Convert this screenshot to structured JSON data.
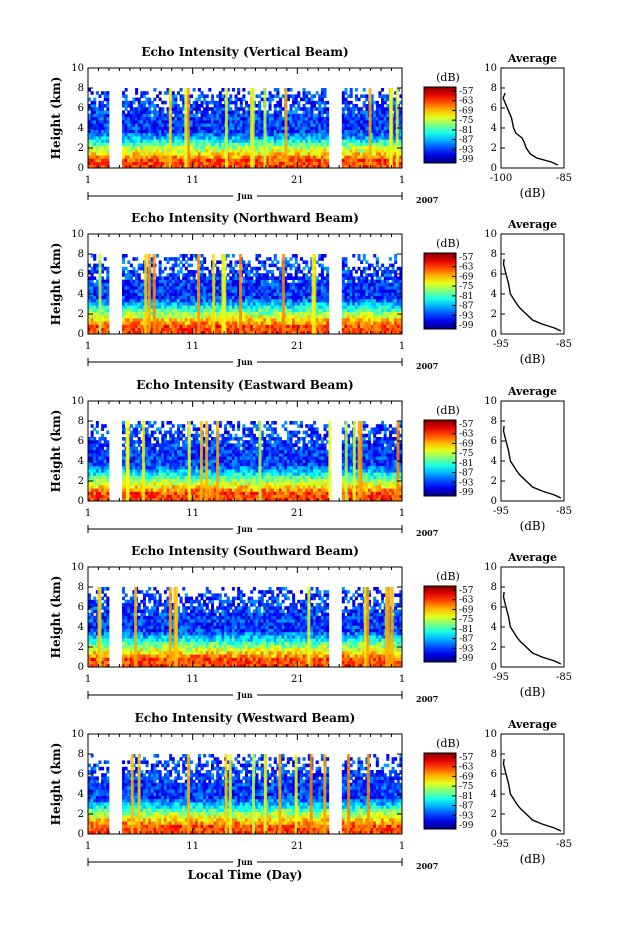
{
  "figure": {
    "x_ticks": [
      "1",
      "11",
      "21",
      "1"
    ],
    "month_label": "Jun",
    "year_label": "2007",
    "xlabel": "Local Time (Day)",
    "ylabel": "Height (km)",
    "y_ticks": [
      0,
      2,
      4,
      6,
      8,
      10
    ],
    "colorbar_unit": "(dB)",
    "colorbar_ticks": [
      "-57",
      "-63",
      "-69",
      "-75",
      "-81",
      "-87",
      "-93",
      "-99"
    ],
    "average_title": "Average",
    "average_xlabel": "(dB)"
  },
  "chart_data": [
    {
      "type": "heatmap",
      "title": "Echo Intensity (Vertical Beam)",
      "ylabel": "Height (km)",
      "ylim": [
        0,
        10
      ],
      "x_range_days": [
        1,
        31
      ],
      "gaps_days": [
        [
          3.1,
          4.3
        ],
        [
          24.0,
          25.3
        ]
      ],
      "colorbar": {
        "unit": "(dB)",
        "min": -99,
        "max": -57
      },
      "average_profile": {
        "title": "Average",
        "xlabel": "(dB)",
        "xticks": [
          "-100",
          "-85"
        ],
        "xlim": [
          -100,
          -85
        ],
        "height_km": [
          0.3,
          0.6,
          1.0,
          1.4,
          2.0,
          2.6,
          3.0,
          3.5,
          4.0,
          5.0,
          6.0,
          7.0,
          7.5
        ],
        "db": [
          -86.5,
          -88.0,
          -91.5,
          -93.0,
          -94.0,
          -94.5,
          -95.0,
          -96.5,
          -97.0,
          -97.5,
          -98.5,
          -99.5,
          -99.0
        ]
      }
    },
    {
      "type": "heatmap",
      "title": "Echo Intensity (Northward Beam)",
      "ylabel": "Height (km)",
      "ylim": [
        0,
        10
      ],
      "x_range_days": [
        1,
        31
      ],
      "gaps_days": [
        [
          3.1,
          4.3
        ],
        [
          24.0,
          25.3
        ]
      ],
      "colorbar": {
        "unit": "(dB)",
        "min": -99,
        "max": -57
      },
      "average_profile": {
        "title": "Average",
        "xlabel": "(dB)",
        "xticks": [
          "-95",
          "-85"
        ],
        "xlim": [
          -95,
          -85
        ],
        "height_km": [
          0.3,
          0.6,
          1.0,
          1.4,
          2.0,
          2.6,
          3.0,
          3.5,
          4.0,
          5.0,
          6.0,
          7.0,
          7.5
        ],
        "db": [
          -85.5,
          -86.5,
          -88.5,
          -90.0,
          -91.0,
          -92.0,
          -92.5,
          -93.0,
          -93.5,
          -93.8,
          -94.2,
          -94.6,
          -94.5
        ]
      }
    },
    {
      "type": "heatmap",
      "title": "Echo Intensity (Eastward Beam)",
      "ylabel": "Height (km)",
      "ylim": [
        0,
        10
      ],
      "x_range_days": [
        1,
        31
      ],
      "gaps_days": [
        [
          3.1,
          4.3
        ],
        [
          24.0,
          25.3
        ]
      ],
      "colorbar": {
        "unit": "(dB)",
        "min": -99,
        "max": -57
      },
      "average_profile": {
        "title": "Average",
        "xlabel": "(dB)",
        "xticks": [
          "-95",
          "-85"
        ],
        "xlim": [
          -95,
          -85
        ],
        "height_km": [
          0.3,
          0.6,
          1.0,
          1.4,
          2.0,
          2.6,
          3.0,
          3.5,
          4.0,
          5.0,
          6.0,
          7.0,
          7.5
        ],
        "db": [
          -85.5,
          -86.5,
          -88.5,
          -90.0,
          -91.0,
          -92.0,
          -92.5,
          -93.0,
          -93.5,
          -93.8,
          -94.2,
          -94.6,
          -94.5
        ]
      }
    },
    {
      "type": "heatmap",
      "title": "Echo Intensity (Southward Beam)",
      "ylabel": "Height (km)",
      "ylim": [
        0,
        10
      ],
      "x_range_days": [
        1,
        31
      ],
      "gaps_days": [
        [
          3.1,
          4.3
        ],
        [
          24.0,
          25.3
        ]
      ],
      "colorbar": {
        "unit": "(dB)",
        "min": -99,
        "max": -57
      },
      "average_profile": {
        "title": "Average",
        "xlabel": "(dB)",
        "xticks": [
          "-95",
          "-85"
        ],
        "xlim": [
          -95,
          -85
        ],
        "height_km": [
          0.3,
          0.6,
          1.0,
          1.4,
          2.0,
          2.6,
          3.0,
          3.5,
          4.0,
          5.0,
          6.0,
          7.0,
          7.5
        ],
        "db": [
          -85.5,
          -86.5,
          -88.5,
          -90.0,
          -91.0,
          -92.0,
          -92.5,
          -93.0,
          -93.5,
          -93.8,
          -94.2,
          -94.6,
          -94.5
        ]
      }
    },
    {
      "type": "heatmap",
      "title": "Echo Intensity (Westward Beam)",
      "ylabel": "Height (km)",
      "ylim": [
        0,
        10
      ],
      "x_range_days": [
        1,
        31
      ],
      "gaps_days": [
        [
          3.1,
          4.3
        ],
        [
          24.0,
          25.3
        ]
      ],
      "colorbar": {
        "unit": "(dB)",
        "min": -99,
        "max": -57
      },
      "average_profile": {
        "title": "Average",
        "xlabel": "(dB)",
        "xticks": [
          "-95",
          "-85"
        ],
        "xlim": [
          -95,
          -85
        ],
        "height_km": [
          0.3,
          0.6,
          1.0,
          1.4,
          2.0,
          2.6,
          3.0,
          3.5,
          4.0,
          5.0,
          6.0,
          7.0,
          7.5
        ],
        "db": [
          -85.5,
          -86.5,
          -88.5,
          -90.0,
          -91.0,
          -92.0,
          -92.5,
          -93.0,
          -93.5,
          -93.8,
          -94.2,
          -94.6,
          -94.5
        ]
      }
    }
  ]
}
